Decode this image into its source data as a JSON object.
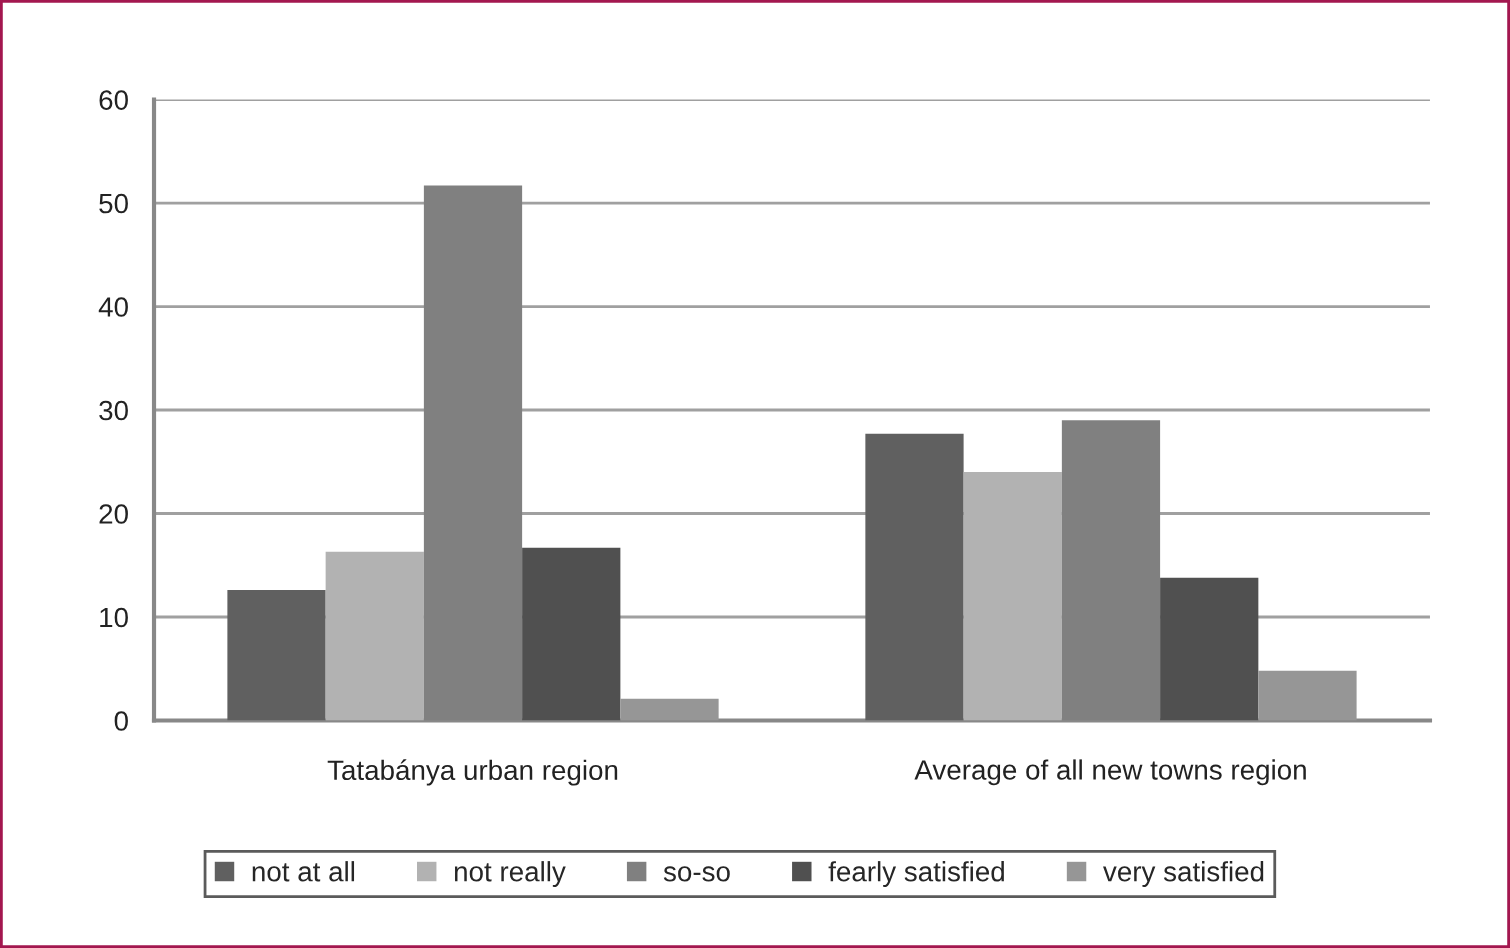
{
  "chart_data": {
    "type": "bar",
    "categories": [
      "Tatabánya urban region",
      "Average of all new towns region"
    ],
    "series": [
      {
        "name": "not at all",
        "color": "#606060",
        "values": [
          12.6,
          27.7
        ]
      },
      {
        "name": "not really",
        "color": "#b2b2b2",
        "values": [
          16.3,
          24.0
        ]
      },
      {
        "name": "so-so",
        "color": "#808080",
        "values": [
          51.7,
          29.0
        ]
      },
      {
        "name": "fearly satisfied",
        "color": "#505050",
        "values": [
          16.7,
          13.8
        ]
      },
      {
        "name": "very satisfied",
        "color": "#969696",
        "values": [
          2.1,
          4.8
        ]
      }
    ],
    "ylim": [
      0,
      60
    ],
    "yticks": [
      0,
      10,
      20,
      30,
      40,
      50,
      60
    ],
    "grid": "y",
    "legend": "bottom"
  }
}
